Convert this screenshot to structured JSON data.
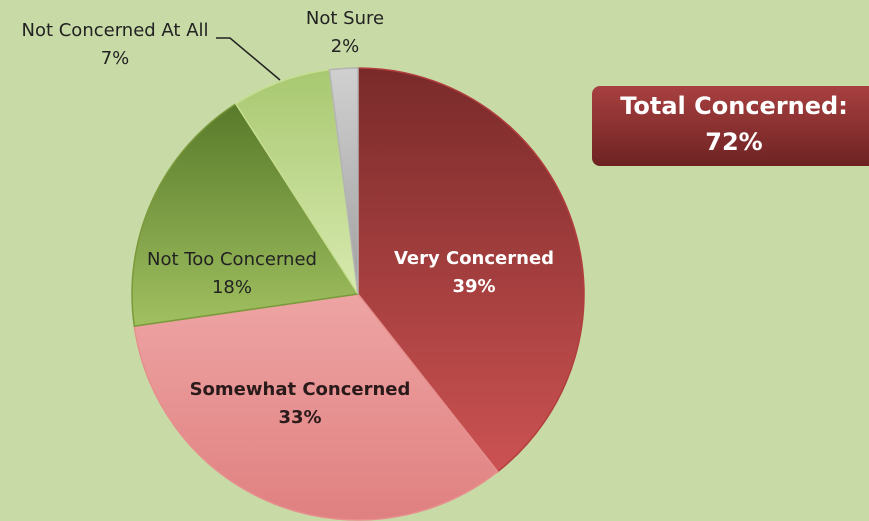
{
  "chart_data": {
    "type": "pie",
    "categories": [
      "Very Concerned",
      "Somewhat Concerned",
      "Not Too Concerned",
      "Not Concerned At All",
      "Not Sure"
    ],
    "values": [
      39,
      33,
      18,
      7,
      2
    ],
    "value_labels": [
      "39%",
      "33%",
      "18%",
      "7%",
      "2%"
    ],
    "colors": [
      "#b23e3e",
      "#e6908e",
      "#7a9a3a",
      "#c6de90",
      "#b4b4b4"
    ],
    "annotation": {
      "text": "Total Concerned:",
      "value": 72,
      "label": "72%"
    }
  }
}
